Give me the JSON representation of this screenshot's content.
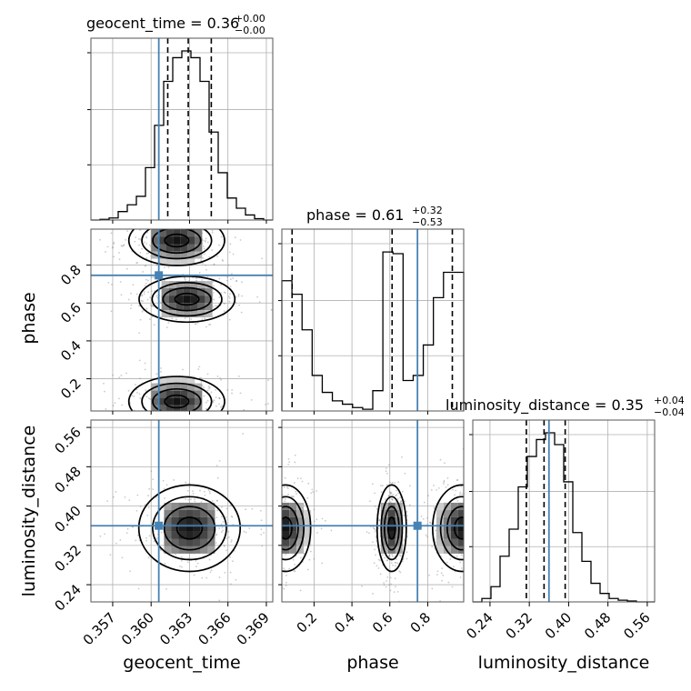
{
  "chart_data": {
    "type": "corner",
    "truth_color": "#4682b4",
    "parameters": [
      {
        "name": "geocent_time",
        "title": "geocent_time = 0.36",
        "title_plus": "+0.00",
        "title_minus": "−0.00",
        "range": [
          0.3553,
          0.3695
        ],
        "ticks": [
          0.357,
          0.36,
          0.363,
          0.366,
          0.369
        ],
        "tick_labels": [
          "0.357",
          "0.360",
          "0.363",
          "0.366",
          "0.369"
        ],
        "truth": 0.3606,
        "quantiles": [
          0.3613,
          0.3629,
          0.3647
        ],
        "hist_bins": [
          0.0,
          0.004,
          0.012,
          0.05,
          0.09,
          0.14,
          0.31,
          0.56,
          0.82,
          0.96,
          1.0,
          0.96,
          0.82,
          0.52,
          0.28,
          0.13,
          0.07,
          0.03,
          0.008,
          0.0
        ]
      },
      {
        "name": "phase",
        "title": "phase = 0.61",
        "title_plus": "+0.32",
        "title_minus": "−0.53",
        "range": [
          0.03,
          0.99
        ],
        "ticks": [
          0.2,
          0.4,
          0.6,
          0.8
        ],
        "tick_labels": [
          "0.2",
          "0.4",
          "0.6",
          "0.8"
        ],
        "truth": 0.746,
        "quantiles": [
          0.084,
          0.612,
          0.93
        ],
        "hist_bins": [
          0.77,
          0.69,
          0.48,
          0.21,
          0.11,
          0.06,
          0.04,
          0.02,
          0.01,
          0.12,
          0.94,
          0.93,
          0.18,
          0.21,
          0.39,
          0.67,
          0.82,
          0.82
        ]
      },
      {
        "name": "luminosity_distance",
        "title": "luminosity_distance = 0.35",
        "title_plus": "+0.04",
        "title_minus": "−0.04",
        "range": [
          0.205,
          0.575
        ],
        "ticks": [
          0.24,
          0.32,
          0.4,
          0.48,
          0.56
        ],
        "tick_labels": [
          "0.24",
          "0.32",
          "0.40",
          "0.48",
          "0.56"
        ],
        "truth": 0.36,
        "quantiles": [
          0.314,
          0.35,
          0.393
        ],
        "hist_bins": [
          0.0,
          0.02,
          0.09,
          0.27,
          0.43,
          0.68,
          0.86,
          0.96,
          1.0,
          0.93,
          0.71,
          0.41,
          0.24,
          0.11,
          0.05,
          0.02,
          0.01,
          0.005,
          0.0,
          0.0
        ]
      }
    ],
    "modes": [
      {
        "pair": "phase|geocent_time",
        "center": [
          0.3628,
          0.62
        ],
        "spread": [
          0.0017,
          0.055
        ]
      },
      {
        "pair": "phase|geocent_time",
        "center": [
          0.362,
          0.93
        ],
        "spread": [
          0.0017,
          0.06
        ]
      },
      {
        "pair": "phase|geocent_time",
        "center": [
          0.362,
          0.08
        ],
        "spread": [
          0.0017,
          0.06
        ]
      },
      {
        "pair": "luminosity_distance|geocent_time",
        "center": [
          0.363,
          0.355
        ],
        "spread": [
          0.0018,
          0.04
        ]
      },
      {
        "pair": "luminosity_distance|phase",
        "center": [
          0.61,
          0.355
        ],
        "spread": [
          0.035,
          0.04
        ]
      },
      {
        "pair": "luminosity_distance|phase",
        "center": [
          0.05,
          0.355
        ],
        "spread": [
          0.06,
          0.04
        ]
      },
      {
        "pair": "luminosity_distance|phase",
        "center": [
          0.98,
          0.355
        ],
        "spread": [
          0.07,
          0.04
        ]
      }
    ]
  }
}
